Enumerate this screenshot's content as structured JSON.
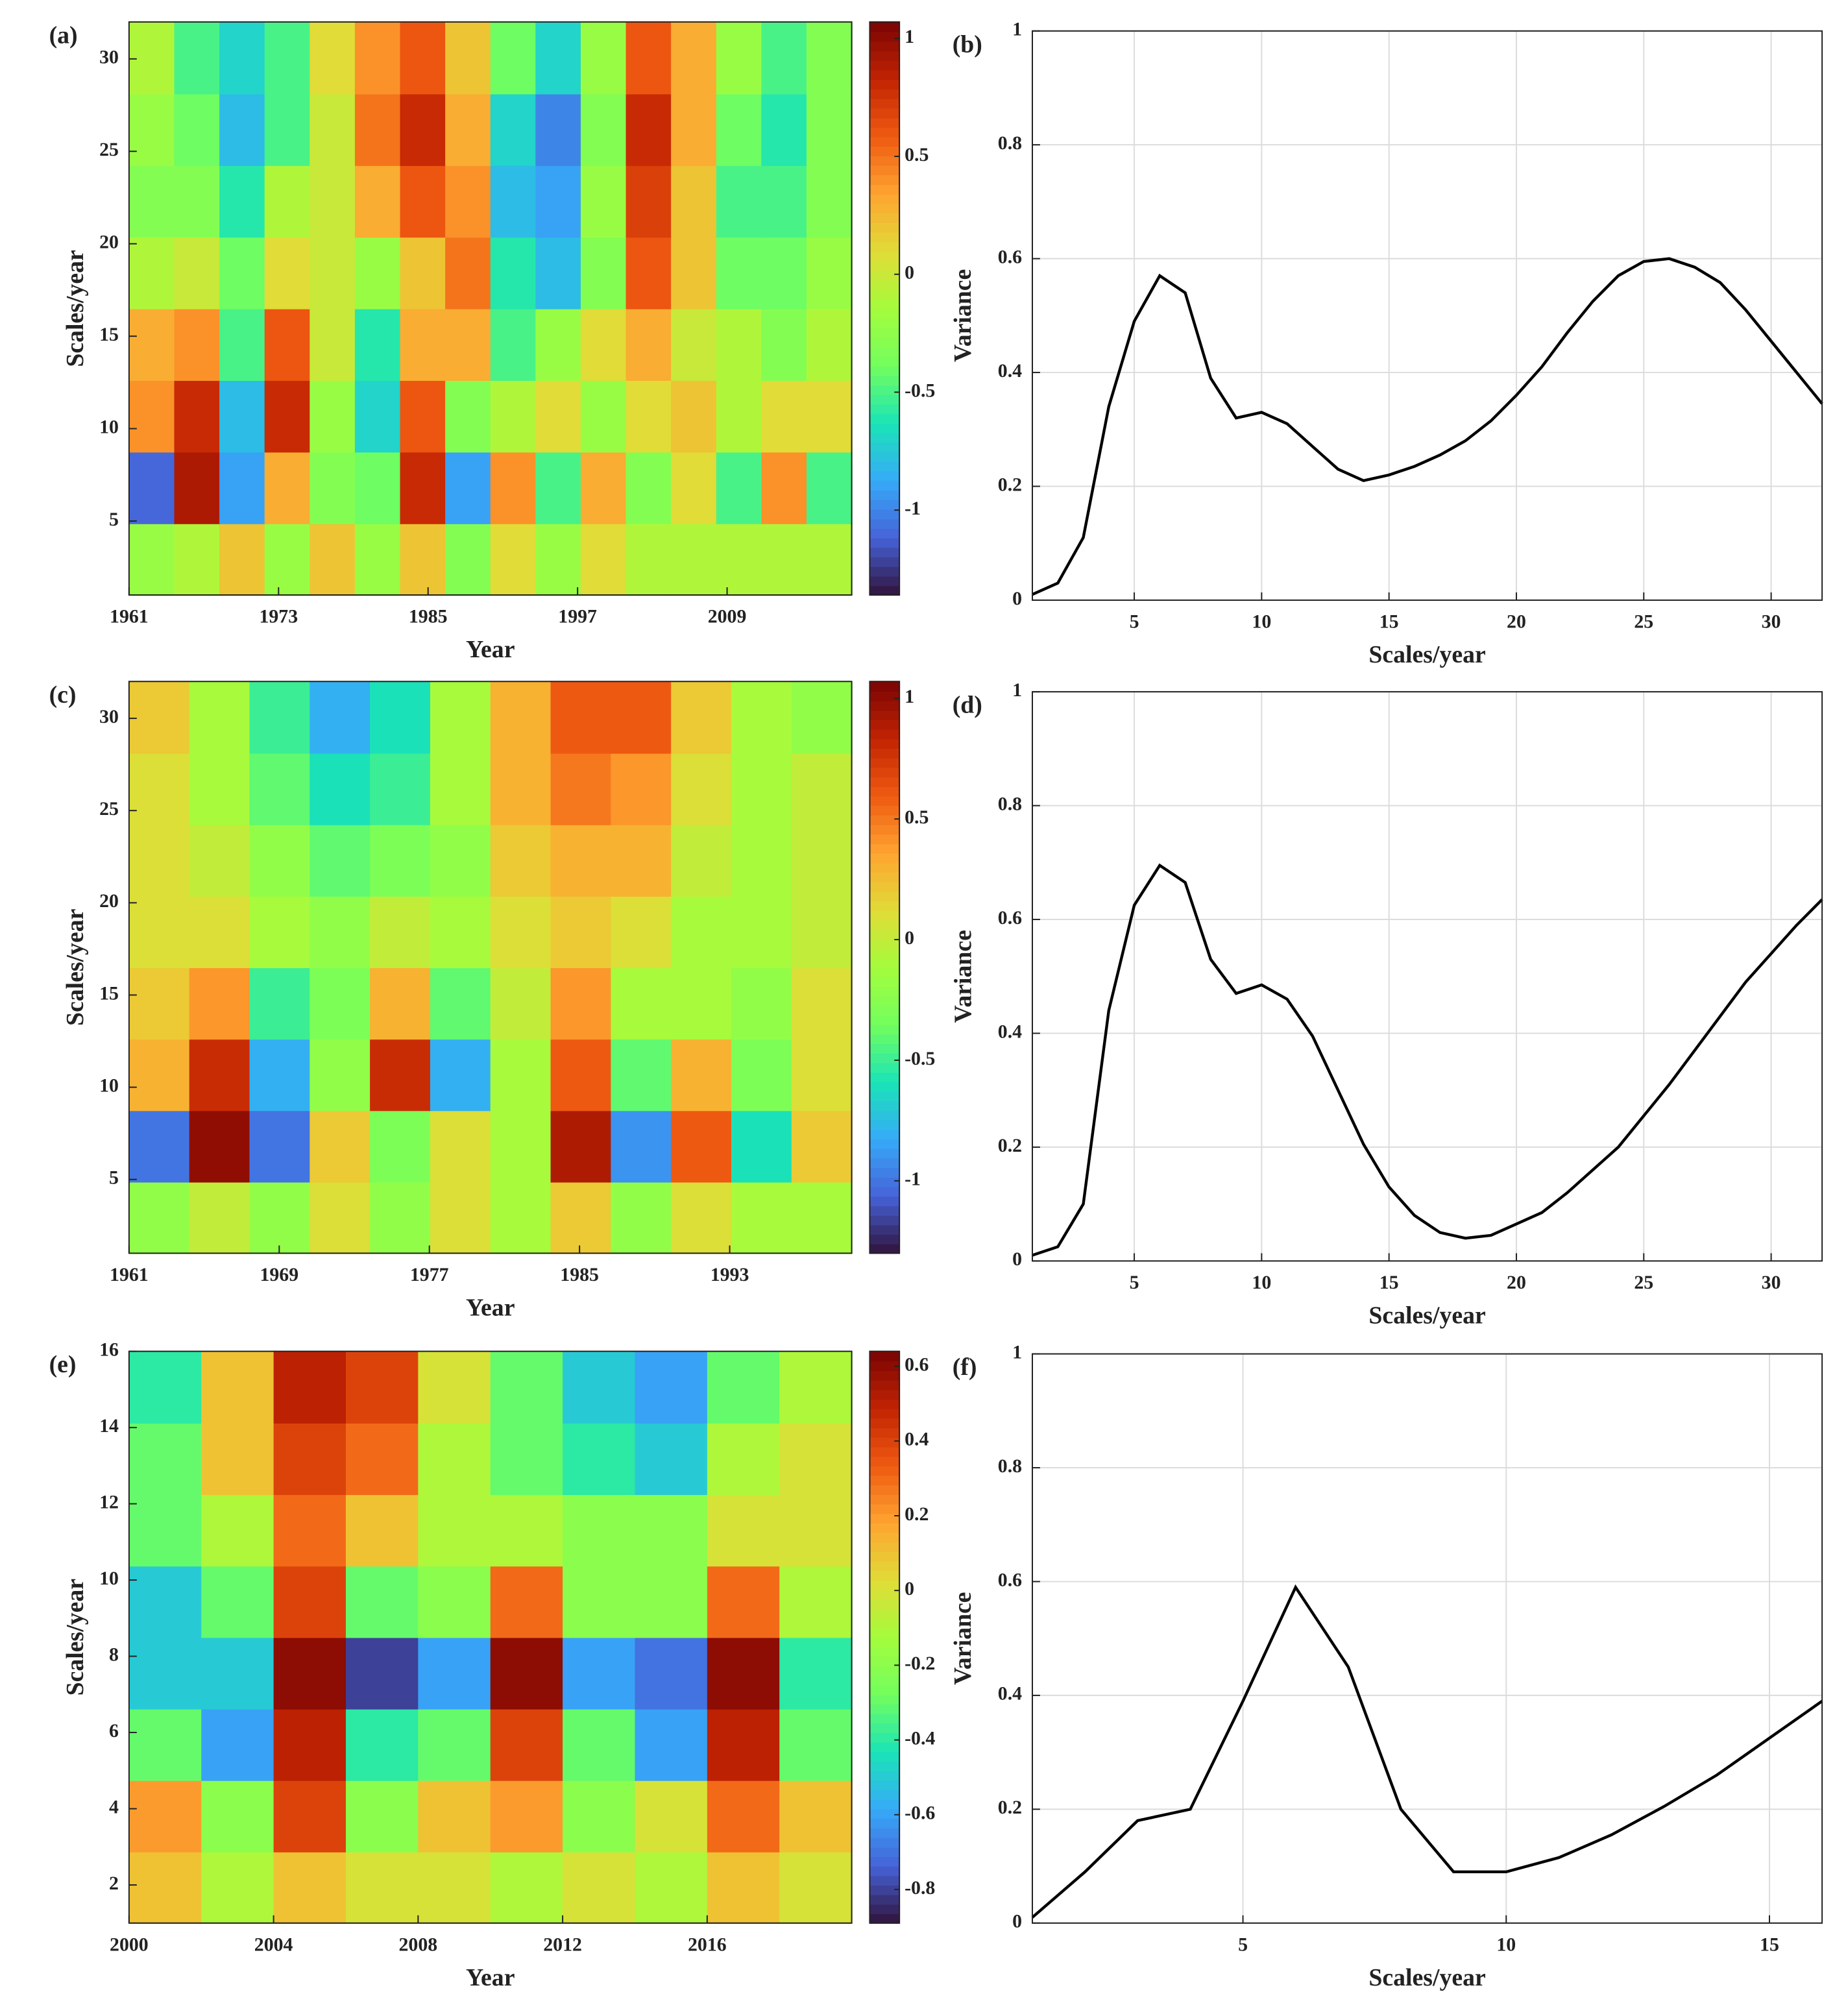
{
  "chart_data": [
    {
      "type": "contour",
      "label": "(a)",
      "xlabel": "Year",
      "ylabel": "Scales/year",
      "xlim": [
        1961,
        2019
      ],
      "ylim": [
        1,
        32
      ],
      "xticks": [
        1961,
        1973,
        1985,
        1997,
        2009
      ],
      "yticks": [
        5,
        10,
        15,
        20,
        25,
        30
      ],
      "clim": [
        -1.36,
        1.07
      ],
      "cticks": [
        -1,
        -0.5,
        0,
        0.5,
        1
      ],
      "z": [
        [
          -0.2,
          -0.1,
          0.2,
          -0.2,
          0.2,
          -0.2,
          0.2,
          -0.3,
          0.1,
          -0.2,
          0.1,
          -0.1,
          -0.1,
          -0.1,
          -0.1,
          -0.1
        ],
        [
          -1.1,
          0.9,
          -0.9,
          0.3,
          -0.3,
          -0.4,
          0.8,
          -0.9,
          0.4,
          -0.5,
          0.3,
          -0.3,
          0.1,
          -0.5,
          0.4,
          -0.5
        ],
        [
          0.4,
          0.8,
          -0.8,
          0.8,
          -0.2,
          -0.7,
          0.6,
          -0.3,
          -0.1,
          0.1,
          -0.2,
          0.1,
          0.2,
          -0.1,
          0.1,
          0.1
        ],
        [
          0.3,
          0.4,
          -0.5,
          0.6,
          0,
          -0.6,
          0.3,
          0.3,
          -0.5,
          -0.2,
          0.1,
          0.3,
          0,
          -0.1,
          -0.3,
          -0.1
        ],
        [
          -0.1,
          0,
          -0.4,
          0.1,
          0,
          -0.2,
          0.2,
          0.5,
          -0.6,
          -0.8,
          -0.3,
          0.6,
          0.2,
          -0.4,
          -0.4,
          -0.2
        ],
        [
          -0.3,
          -0.3,
          -0.6,
          -0.1,
          0,
          0.3,
          0.6,
          0.4,
          -0.8,
          -0.9,
          -0.2,
          0.7,
          0.2,
          -0.5,
          -0.5,
          -0.3
        ],
        [
          -0.2,
          -0.4,
          -0.8,
          -0.5,
          0,
          0.5,
          0.8,
          0.3,
          -0.7,
          -1.0,
          -0.3,
          0.8,
          0.3,
          -0.4,
          -0.6,
          -0.3
        ],
        [
          -0.1,
          -0.5,
          -0.7,
          -0.5,
          0.1,
          0.4,
          0.6,
          0.2,
          -0.4,
          -0.7,
          -0.2,
          0.6,
          0.3,
          -0.2,
          -0.5,
          -0.3
        ]
      ]
    },
    {
      "type": "line",
      "label": "(b)",
      "xlabel": "Scales/year",
      "ylabel": "Variance",
      "color": "#000000",
      "grid": true,
      "xlim": [
        1,
        32
      ],
      "ylim": [
        0,
        1
      ],
      "xticks": [
        5,
        10,
        15,
        20,
        25,
        30
      ],
      "yticks": [
        0,
        0.2,
        0.4,
        0.6,
        0.8,
        1
      ],
      "x": [
        1,
        2,
        3,
        4,
        5,
        6,
        7,
        8,
        9,
        10,
        11,
        12,
        13,
        14,
        15,
        16,
        17,
        18,
        19,
        20,
        21,
        22,
        23,
        24,
        25,
        26,
        27,
        28,
        29,
        30,
        31,
        32
      ],
      "values": [
        0.01,
        0.03,
        0.11,
        0.34,
        0.49,
        0.57,
        0.54,
        0.39,
        0.32,
        0.33,
        0.31,
        0.27,
        0.23,
        0.21,
        0.22,
        0.235,
        0.255,
        0.28,
        0.315,
        0.36,
        0.41,
        0.47,
        0.525,
        0.57,
        0.595,
        0.6,
        0.585,
        0.558,
        0.51,
        0.455,
        0.4,
        0.345
      ]
    },
    {
      "type": "contour",
      "label": "(c)",
      "xlabel": "Year",
      "ylabel": "Scales/year",
      "xlim": [
        1961,
        1999.5
      ],
      "ylim": [
        1,
        32
      ],
      "xticks": [
        1961,
        1969,
        1977,
        1985,
        1993
      ],
      "yticks": [
        5,
        10,
        15,
        20,
        25,
        30
      ],
      "clim": [
        -1.3,
        1.07
      ],
      "cticks": [
        -1,
        -0.5,
        0,
        0.5,
        1
      ],
      "z": [
        [
          -0.2,
          0,
          -0.2,
          0.1,
          -0.2,
          0.1,
          -0.1,
          0.2,
          -0.2,
          0.1,
          -0.1,
          -0.1
        ],
        [
          -1.0,
          1.0,
          -1.0,
          0.2,
          -0.3,
          0.1,
          -0.1,
          0.9,
          -0.9,
          0.6,
          -0.6,
          0.2
        ],
        [
          0.3,
          0.8,
          -0.8,
          -0.2,
          0.8,
          -0.8,
          -0.1,
          0.6,
          -0.4,
          0.3,
          -0.3,
          0.1
        ],
        [
          0.2,
          0.4,
          -0.5,
          -0.3,
          0.3,
          -0.4,
          0,
          0.4,
          -0.1,
          -0.1,
          -0.2,
          0.1
        ],
        [
          0.1,
          0.1,
          -0.1,
          -0.2,
          0,
          -0.1,
          0.1,
          0.2,
          0.1,
          -0.1,
          -0.1,
          0
        ],
        [
          0.1,
          0,
          -0.2,
          -0.4,
          -0.3,
          -0.2,
          0.2,
          0.3,
          0.3,
          0,
          -0.1,
          0
        ],
        [
          0.1,
          -0.1,
          -0.4,
          -0.6,
          -0.5,
          -0.1,
          0.3,
          0.5,
          0.4,
          0.1,
          -0.1,
          0
        ],
        [
          0.2,
          -0.1,
          -0.5,
          -0.8,
          -0.6,
          -0.1,
          0.3,
          0.6,
          0.6,
          0.2,
          -0.1,
          -0.2
        ]
      ]
    },
    {
      "type": "line",
      "label": "(d)",
      "xlabel": "Scales/year",
      "ylabel": "Variance",
      "color": "#000000",
      "grid": true,
      "xlim": [
        1,
        32
      ],
      "ylim": [
        0,
        1
      ],
      "xticks": [
        5,
        10,
        15,
        20,
        25,
        30
      ],
      "yticks": [
        0,
        0.2,
        0.4,
        0.6,
        0.8,
        1
      ],
      "x": [
        1,
        2,
        3,
        4,
        5,
        6,
        7,
        8,
        9,
        10,
        11,
        12,
        13,
        14,
        15,
        16,
        17,
        18,
        19,
        20,
        21,
        22,
        23,
        24,
        25,
        26,
        27,
        28,
        29,
        30,
        31,
        32
      ],
      "values": [
        0.01,
        0.025,
        0.1,
        0.44,
        0.625,
        0.695,
        0.665,
        0.53,
        0.47,
        0.485,
        0.46,
        0.395,
        0.3,
        0.205,
        0.13,
        0.08,
        0.05,
        0.04,
        0.045,
        0.065,
        0.085,
        0.12,
        0.16,
        0.2,
        0.255,
        0.31,
        0.37,
        0.43,
        0.49,
        0.54,
        0.59,
        0.635
      ]
    },
    {
      "type": "contour",
      "label": "(e)",
      "xlabel": "Year",
      "ylabel": "Scales/year",
      "xlim": [
        2000,
        2020
      ],
      "ylim": [
        1,
        16
      ],
      "xticks": [
        2000,
        2004,
        2008,
        2012,
        2016
      ],
      "yticks": [
        2,
        4,
        6,
        8,
        10,
        12,
        14,
        16
      ],
      "clim": [
        -0.89,
        0.64
      ],
      "cticks": [
        -0.8,
        -0.6,
        -0.4,
        -0.2,
        0,
        0.2,
        0.4,
        0.6
      ],
      "z": [
        [
          0.1,
          -0.1,
          0.1,
          0,
          0,
          -0.1,
          0,
          -0.1,
          0.1,
          0
        ],
        [
          0.2,
          -0.2,
          0.4,
          -0.2,
          0.1,
          0.2,
          -0.2,
          0,
          0.3,
          0.1
        ],
        [
          -0.3,
          -0.6,
          0.5,
          -0.4,
          -0.3,
          0.4,
          -0.3,
          -0.6,
          0.5,
          -0.3
        ],
        [
          -0.5,
          -0.5,
          0.6,
          -0.8,
          -0.6,
          0.6,
          -0.6,
          -0.7,
          0.6,
          -0.4
        ],
        [
          -0.5,
          -0.3,
          0.4,
          -0.3,
          -0.2,
          0.3,
          -0.2,
          -0.2,
          0.3,
          -0.1
        ],
        [
          -0.3,
          -0.1,
          0.3,
          0.1,
          -0.1,
          -0.1,
          -0.2,
          -0.2,
          0,
          0
        ],
        [
          -0.3,
          0.1,
          0.4,
          0.3,
          -0.1,
          -0.3,
          -0.4,
          -0.5,
          -0.1,
          0
        ],
        [
          -0.4,
          0.1,
          0.5,
          0.4,
          0,
          -0.3,
          -0.5,
          -0.6,
          -0.3,
          -0.1
        ]
      ]
    },
    {
      "type": "line",
      "label": "(f)",
      "xlabel": "Scales/year",
      "ylabel": "Variance",
      "color": "#000000",
      "grid": true,
      "xlim": [
        1,
        16
      ],
      "ylim": [
        0,
        1
      ],
      "xticks": [
        5,
        10,
        15
      ],
      "yticks": [
        0,
        0.2,
        0.4,
        0.6,
        0.8,
        1
      ],
      "x": [
        1,
        2,
        3,
        4,
        5,
        6,
        7,
        8,
        9,
        10,
        11,
        12,
        13,
        14,
        15,
        16
      ],
      "values": [
        0.01,
        0.09,
        0.18,
        0.2,
        0.39,
        0.59,
        0.45,
        0.2,
        0.09,
        0.09,
        0.115,
        0.155,
        0.205,
        0.26,
        0.325,
        0.39
      ]
    }
  ]
}
